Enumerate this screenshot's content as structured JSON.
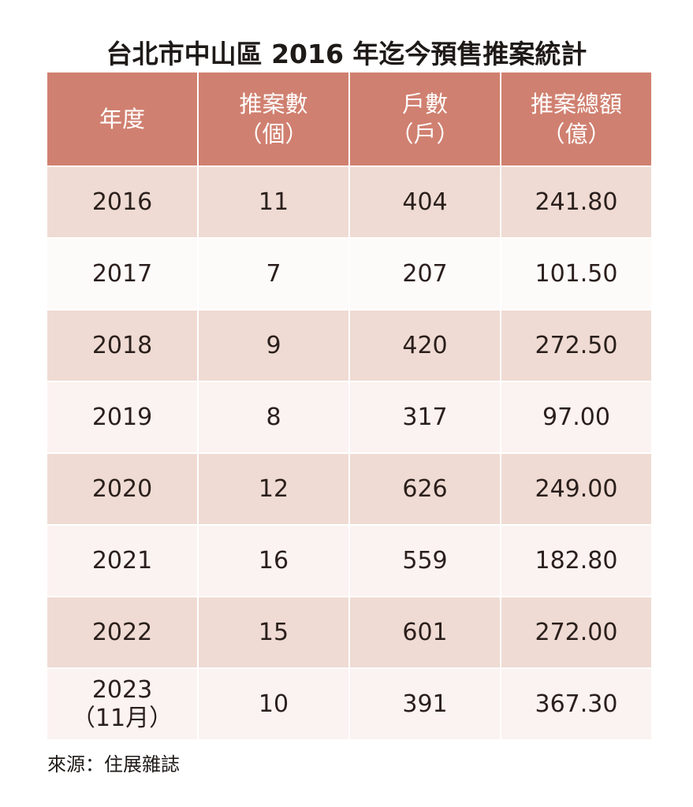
{
  "title": "台北市中山區 2016 年迄今預售推案統計",
  "table": {
    "headers": [
      {
        "line1": "年度",
        "line2": ""
      },
      {
        "line1": "推案數",
        "line2": "（個）"
      },
      {
        "line1": "戶數",
        "line2": "（戶）"
      },
      {
        "line1": "推案總額",
        "line2": "（億）"
      }
    ],
    "rows": [
      {
        "year": "2016",
        "year_note": "",
        "projects": "11",
        "units": "404",
        "total": "241.80"
      },
      {
        "year": "2017",
        "year_note": "",
        "projects": "7",
        "units": "207",
        "total": "101.50"
      },
      {
        "year": "2018",
        "year_note": "",
        "projects": "9",
        "units": "420",
        "total": "272.50"
      },
      {
        "year": "2019",
        "year_note": "",
        "projects": "8",
        "units": "317",
        "total": "97.00"
      },
      {
        "year": "2020",
        "year_note": "",
        "projects": "12",
        "units": "626",
        "total": "249.00"
      },
      {
        "year": "2021",
        "year_note": "",
        "projects": "16",
        "units": "559",
        "total": "182.80"
      },
      {
        "year": "2022",
        "year_note": "",
        "projects": "15",
        "units": "601",
        "total": "272.00"
      },
      {
        "year": "2023",
        "year_note": "（11月）",
        "projects": "10",
        "units": "391",
        "total": "367.30"
      }
    ]
  },
  "source": "來源：住展雜誌",
  "colors": {
    "header": "#d08070",
    "row_dark": "#efdbd3",
    "row_light": "#fbf3f1"
  }
}
